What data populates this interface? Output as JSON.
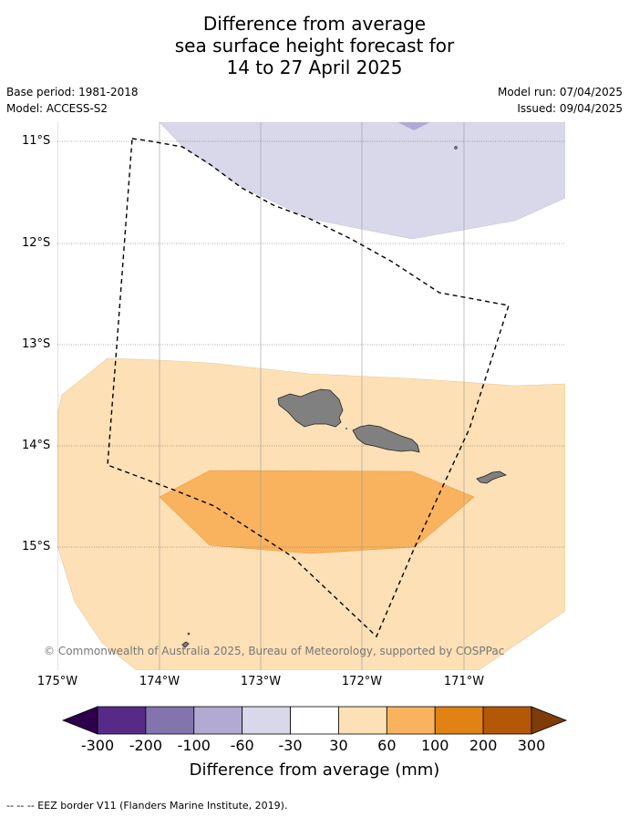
{
  "title_lines": [
    "Difference from average",
    "sea surface height forecast for",
    "14 to 27 April 2025"
  ],
  "base_period": "Base period: 1981-2018",
  "model": "Model: ACCESS-S2",
  "model_run": "Model run: 07/04/2025",
  "issued": "Issued: 09/04/2025",
  "map": {
    "lat_labels": [
      "11°S",
      "12°S",
      "13°S",
      "14°S",
      "15°S"
    ],
    "lon_labels": [
      "175°W",
      "174°W",
      "173°W",
      "172°W",
      "171°W"
    ],
    "copyright": "© Commonwealth of Australia 2025, Bureau of Meteorology, supported by COSPPac",
    "region_colors": {
      "minus_60_30": "#d8d8ea",
      "minus_100_60": "#b2aad2",
      "plus_30_60": "#fde0b5",
      "plus_60_100": "#f9b35e",
      "land": "#808080"
    }
  },
  "colorbar": {
    "tick_labels": [
      "-300",
      "-200",
      "-100",
      "-60",
      "-30",
      "30",
      "60",
      "100",
      "200",
      "300"
    ],
    "colors": [
      "#572a88",
      "#8275ad",
      "#b2aad2",
      "#d8d8ea",
      "#ffffff",
      "#fde0b5",
      "#f9b35e",
      "#e08214",
      "#b35806"
    ],
    "under_color": "#2d004b",
    "over_color": "#7f3b08",
    "label": "Difference from average (mm)"
  },
  "footnote": "--  --  -- EEZ border V11 (Flanders Marine Institute, 2019)."
}
